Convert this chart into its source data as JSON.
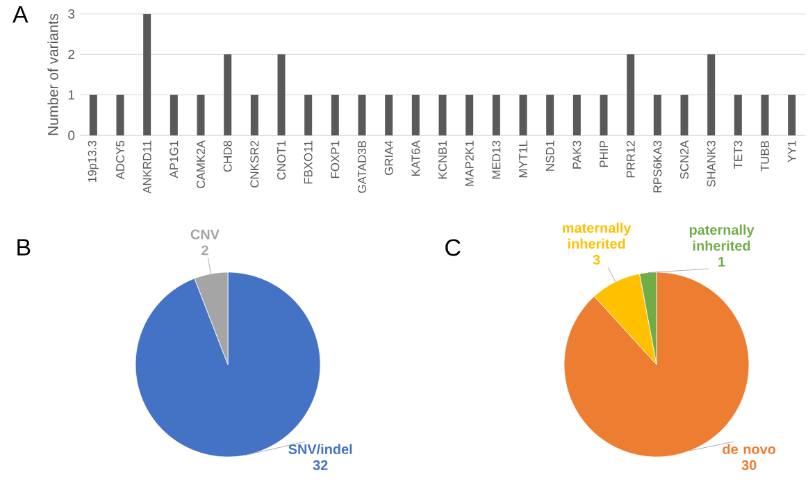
{
  "chart_data": [
    {
      "type": "bar",
      "title": "A",
      "ylabel": "Number of variants",
      "categories": [
        "19p13.3",
        "ADCY5",
        "ANKRD11",
        "AP1G1",
        "CAMK2A",
        "CHD8",
        "CNKSR2",
        "CNOT1",
        "FBXO11",
        "FOXP1",
        "GATAD3B",
        "GRIA4",
        "KAT6A",
        "KCNB1",
        "MAP2K1",
        "MED13",
        "MYT1L",
        "NSD1",
        "PAK3",
        "PHIP",
        "PRR12",
        "RPS6KA3",
        "SCN2A",
        "SHANK3",
        "TET3",
        "TUBB",
        "YY1"
      ],
      "values": [
        1,
        1,
        3,
        1,
        1,
        2,
        1,
        2,
        1,
        1,
        1,
        1,
        1,
        1,
        1,
        1,
        1,
        1,
        1,
        1,
        2,
        1,
        1,
        2,
        1,
        1,
        1
      ],
      "color": "#595959",
      "ylim": [
        0,
        3
      ],
      "yticks": [
        0,
        1,
        2,
        3
      ],
      "grid": "y"
    },
    {
      "type": "pie",
      "title": "B",
      "categories": [
        "SNV/indel",
        "CNV"
      ],
      "values": [
        32,
        2
      ],
      "colors": [
        "#4472c4",
        "#a5a5a5"
      ],
      "data_labels": true
    },
    {
      "type": "pie",
      "title": "C",
      "categories": [
        "de novo",
        "maternally inherited",
        "paternally inherited"
      ],
      "values": [
        30,
        3,
        1
      ],
      "colors": [
        "#ed7d31",
        "#ffc000",
        "#70ad47"
      ],
      "data_labels": true
    }
  ]
}
